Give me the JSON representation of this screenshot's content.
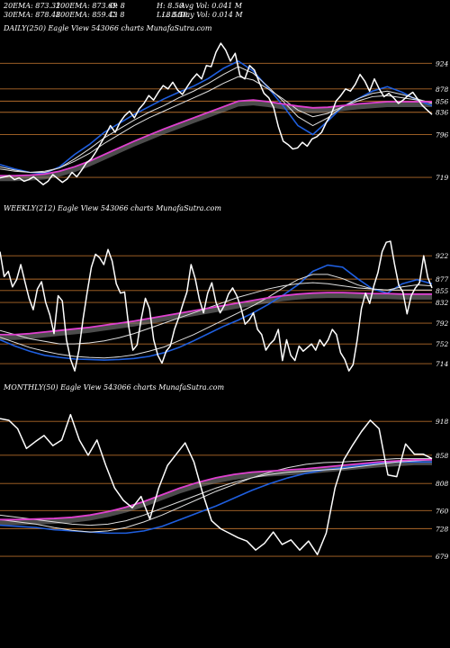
{
  "header": {
    "ema20": "20EMA: 873.32",
    "ema100": "100EMA: 873.69",
    "open": "O: 8",
    "high": "H: 8.50",
    "avgvol": "Avg Vol: 0.041 M",
    "ema30": "30EMA: 878.48",
    "ema200": "200EMA: 859.43",
    "close": "C: 8",
    "low": "L: 8.50",
    "low_overlap": "L: 8.50",
    "dayvol": "Day Vol: 0.014  M"
  },
  "colors": {
    "background": "#000000",
    "price": "#ffffff",
    "ema_fast": "#1f5fe0",
    "ema_mid": "#e0e0e0",
    "ema_long": "#e040d0",
    "level": "#b06a2a",
    "fill": "#8a8a8a"
  },
  "chart_data": [
    {
      "type": "line",
      "title": "DAILY(250) Eagle   View  543066  charts MunafaSutra.com",
      "xlabel": "",
      "ylabel": "",
      "ylim": [
        690,
        965
      ],
      "levels": [
        924,
        878,
        856,
        836,
        796,
        719
      ],
      "price": [
        718,
        720,
        722,
        715,
        718,
        712,
        715,
        720,
        713,
        706,
        712,
        724,
        717,
        710,
        716,
        728,
        720,
        732,
        745,
        752,
        765,
        780,
        795,
        812,
        800,
        818,
        830,
        838,
        826,
        842,
        852,
        866,
        858,
        872,
        884,
        878,
        890,
        876,
        868,
        882,
        895,
        905,
        896,
        920,
        918,
        944,
        960,
        948,
        928,
        942,
        902,
        896,
        920,
        912,
        890,
        870,
        862,
        845,
        810,
        784,
        778,
        770,
        772,
        782,
        775,
        788,
        792,
        800,
        818,
        832,
        856,
        866,
        878,
        874,
        886,
        904,
        892,
        874,
        896,
        878,
        864,
        870,
        862,
        852,
        858,
        866,
        872,
        860,
        848,
        840,
        832
      ],
      "series": [
        {
          "values": [
            742,
            734,
            728,
            726,
            738,
            760,
            778,
            800,
            816,
            832,
            846,
            860,
            872,
            883,
            897,
            915,
            928,
            910,
            880,
            848,
            812,
            796,
            820,
            846,
            860,
            874,
            882,
            872,
            858,
            848
          ]
        },
        {
          "values": [
            738,
            732,
            728,
            728,
            736,
            752,
            770,
            790,
            806,
            822,
            836,
            848,
            862,
            874,
            888,
            904,
            918,
            906,
            882,
            856,
            828,
            812,
            826,
            846,
            860,
            870,
            874,
            868,
            860,
            852
          ]
        },
        {
          "values": [
            734,
            730,
            728,
            730,
            736,
            748,
            762,
            780,
            796,
            812,
            826,
            838,
            850,
            862,
            874,
            888,
            900,
            894,
            878,
            860,
            840,
            828,
            834,
            846,
            856,
            864,
            866,
            862,
            858,
            854
          ]
        },
        {
          "values": [
            722,
            722,
            723,
            725,
            730,
            738,
            748,
            760,
            772,
            784,
            795,
            806,
            816,
            826,
            836,
            846,
            856,
            858,
            855,
            851,
            847,
            844,
            845,
            848,
            851,
            853,
            855,
            855,
            855,
            855
          ]
        }
      ]
    },
    {
      "type": "line",
      "title": "WEEKLY(212) Eagle   View  543066  charts MunafaSutra.com",
      "xlabel": "",
      "ylabel": "",
      "ylim": [
        695,
        990
      ],
      "levels": [
        922,
        877,
        855,
        832,
        792,
        752,
        714
      ],
      "price": [
        930,
        882,
        892,
        862,
        876,
        905,
        872,
        840,
        818,
        858,
        872,
        832,
        808,
        772,
        845,
        835,
        760,
        722,
        700,
        740,
        800,
        852,
        900,
        925,
        918,
        905,
        934,
        912,
        868,
        850,
        852,
        785,
        740,
        750,
        800,
        840,
        820,
        760,
        730,
        715,
        738,
        748,
        780,
        802,
        828,
        852,
        905,
        878,
        838,
        812,
        850,
        870,
        832,
        812,
        826,
        848,
        860,
        845,
        822,
        790,
        798,
        812,
        780,
        770,
        740,
        752,
        760,
        780,
        720,
        760,
        730,
        720,
        748,
        738,
        745,
        752,
        740,
        760,
        748,
        760,
        780,
        770,
        735,
        722,
        700,
        712,
        760,
        820,
        850,
        830,
        864,
        890,
        930,
        948,
        950,
        905,
        865,
        852,
        810,
        845,
        860,
        870,
        922,
        880,
        860
      ],
      "series": [
        {
          "values": [
            760,
            748,
            738,
            730,
            726,
            723,
            722,
            721,
            722,
            724,
            728,
            735,
            745,
            758,
            772,
            786,
            798,
            812,
            828,
            846,
            866,
            892,
            904,
            900,
            878,
            858,
            850,
            868,
            876,
            868
          ]
        },
        {
          "values": [
            765,
            755,
            745,
            738,
            732,
            728,
            726,
            725,
            727,
            731,
            738,
            746,
            758,
            770,
            784,
            798,
            812,
            826,
            842,
            860,
            876,
            886,
            886,
            878,
            866,
            858,
            856,
            862,
            866,
            864
          ]
        },
        {
          "values": [
            778,
            770,
            762,
            757,
            752,
            752,
            754,
            758,
            764,
            772,
            782,
            792,
            802,
            812,
            822,
            832,
            842,
            850,
            858,
            864,
            868,
            870,
            868,
            864,
            860,
            858,
            856,
            856,
            856,
            856
          ]
        },
        {
          "values": [
            770,
            770,
            772,
            775,
            778,
            781,
            784,
            788,
            792,
            796,
            801,
            806,
            811,
            816,
            821,
            826,
            831,
            836,
            841,
            845,
            848,
            850,
            851,
            851,
            850,
            849,
            849,
            848,
            848,
            848
          ]
        }
      ]
    },
    {
      "type": "line",
      "title": "MONTHLY(50) Eagle   View  543066  charts MunafaSutra.com",
      "xlabel": "",
      "ylabel": "",
      "ylim": [
        668,
        955
      ],
      "levels": [
        918,
        858,
        808,
        760,
        728,
        679
      ],
      "price": [
        923,
        920,
        905,
        870,
        882,
        893,
        875,
        885,
        930,
        885,
        858,
        885,
        840,
        800,
        778,
        765,
        785,
        745,
        800,
        840,
        860,
        880,
        846,
        790,
        742,
        728,
        720,
        712,
        706,
        690,
        702,
        722,
        700,
        708,
        690,
        706,
        682,
        720,
        800,
        850,
        876,
        900,
        920,
        905,
        823,
        820,
        878,
        860,
        860,
        852
      ],
      "series": [
        {
          "values": [
            734,
            732,
            730,
            726,
            724,
            722,
            720,
            720,
            724,
            732,
            744,
            756,
            768,
            782,
            796,
            808,
            818,
            826,
            832,
            836,
            840,
            844,
            846,
            846,
            846
          ]
        },
        {
          "values": [
            744,
            740,
            736,
            730,
            725,
            722,
            724,
            730,
            740,
            752,
            766,
            780,
            794,
            806,
            818,
            828,
            836,
            842,
            845,
            846,
            848,
            850,
            852,
            852,
            852
          ]
        },
        {
          "values": [
            752,
            748,
            744,
            740,
            736,
            734,
            736,
            742,
            752,
            764,
            776,
            788,
            800,
            810,
            818,
            824,
            828,
            830,
            832,
            834,
            838,
            842,
            846,
            848,
            850
          ]
        },
        {
          "values": [
            744,
            744,
            745,
            746,
            748,
            752,
            758,
            766,
            776,
            788,
            800,
            810,
            818,
            824,
            828,
            830,
            832,
            834,
            837,
            840,
            843,
            846,
            848,
            850,
            850
          ]
        }
      ]
    }
  ]
}
